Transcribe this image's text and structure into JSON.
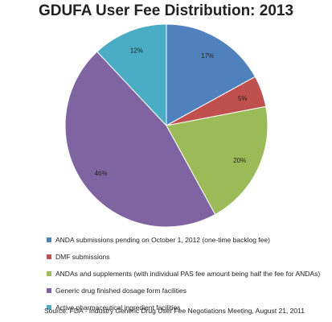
{
  "chart_data": {
    "type": "pie",
    "title": "GDUFA User Fee Distribution: 2013",
    "slices": [
      {
        "label": "ANDA submissions pending on October 1, 2012 (one-time backlog fee)",
        "value": 17,
        "value_label": "17%",
        "color": "#4F81BD"
      },
      {
        "label": "DMF submissions",
        "value": 5,
        "value_label": "5%",
        "color": "#C0504D"
      },
      {
        "label": "ANDAs and supplements (with individual PAS fee amount being half the fee for ANDAs)",
        "value": 20,
        "value_label": "20%",
        "color": "#9BBB59"
      },
      {
        "label": "Generic drug finished dosage form facilities",
        "value": 46,
        "value_label": "46%",
        "color": "#8064A2"
      },
      {
        "label": "Active pharmaceutical ingredient facilities",
        "value": 12,
        "value_label": "12%",
        "color": "#4BACC6"
      }
    ],
    "legend_position": "bottom",
    "source": "Source: FDA - Industry Generic Drug User Fee Negotiations Meeting, August 21, 2011"
  }
}
